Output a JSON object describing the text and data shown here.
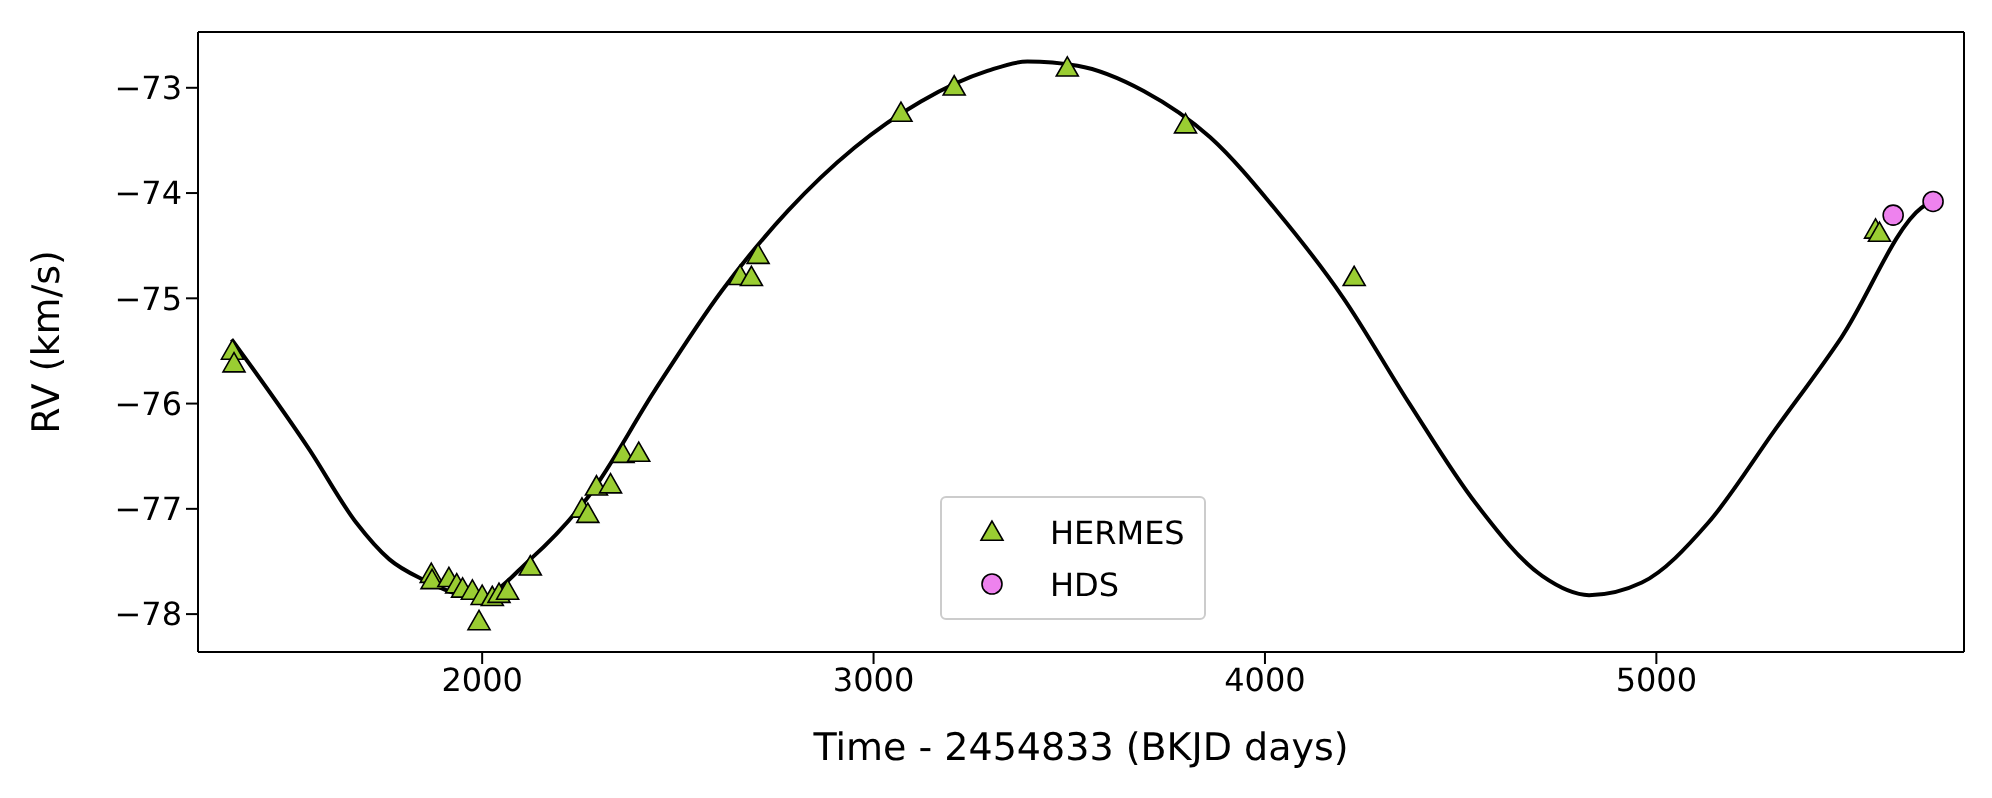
{
  "chart_data": {
    "type": "scatter",
    "xlabel": "Time - 2454833 (BKJD days)",
    "ylabel": "RV (km/s)",
    "xlim": [
      1274,
      5786
    ],
    "ylim": [
      -78.36,
      -72.47
    ],
    "xticks": [
      2000,
      3000,
      4000,
      5000
    ],
    "yticks": [
      -78,
      -77,
      -76,
      -75,
      -74,
      -73
    ],
    "grid": false,
    "legend": "bottom",
    "series": [
      {
        "type": "line",
        "color": "#000000",
        "marker": "none",
        "line_style": "solid",
        "x": [
          1360,
          1559,
          1678,
          1763,
          1848,
          1990,
          2123,
          2272,
          2442,
          2612,
          2781,
          2951,
          3121,
          3291,
          3393,
          3521,
          3690,
          3860,
          4030,
          4199,
          4369,
          4539,
          4709,
          4828,
          4963,
          5133,
          5303,
          5473,
          5677,
          5720
        ],
        "values": [
          -75.39,
          -76.44,
          -77.13,
          -77.48,
          -77.67,
          -77.84,
          -77.48,
          -76.88,
          -75.87,
          -74.93,
          -74.17,
          -73.57,
          -73.13,
          -72.84,
          -72.75,
          -72.79,
          -73.03,
          -73.47,
          -74.17,
          -74.99,
          -76.0,
          -76.95,
          -77.64,
          -77.82,
          -77.7,
          -77.13,
          -76.25,
          -75.37,
          -74.14,
          -74.05
        ]
      },
      {
        "name": "HERMES",
        "color": "#9acd32",
        "marker": "triangle",
        "x": [
          1362,
          1366,
          1870,
          1872,
          1915,
          1935,
          1950,
          1975,
          1992,
          2000,
          2026,
          2043,
          2065,
          2123,
          2255,
          2270,
          2292,
          2328,
          2360,
          2400,
          2659,
          2688,
          2705,
          3070,
          3206,
          3495,
          3797,
          4228,
          5560,
          5570
        ],
        "values": [
          -75.5,
          -75.62,
          -77.62,
          -77.68,
          -77.66,
          -77.72,
          -77.76,
          -77.78,
          -78.07,
          -77.83,
          -77.84,
          -77.81,
          -77.78,
          -77.55,
          -77.0,
          -77.05,
          -76.79,
          -76.77,
          -76.48,
          -76.47,
          -74.79,
          -74.8,
          -74.59,
          -73.24,
          -72.99,
          -72.81,
          -73.35,
          -74.8,
          -74.35,
          -74.38
        ]
      },
      {
        "name": "HDS",
        "color": "#ee82ee",
        "marker": "circle",
        "x": [
          5605,
          5707
        ],
        "values": [
          -74.21,
          -74.08
        ]
      }
    ]
  }
}
